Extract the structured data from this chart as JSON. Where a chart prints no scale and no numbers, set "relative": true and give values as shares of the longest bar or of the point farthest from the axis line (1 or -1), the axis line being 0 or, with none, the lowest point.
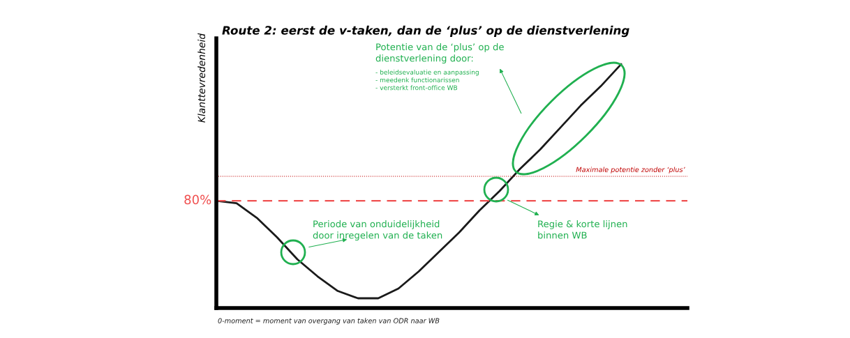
{
  "chart_data": {
    "type": "line",
    "title": "Route 2: eerst de v-taken, dan de ‘plus’ op de dienstverlening",
    "ylabel": "Klanttevredenheid",
    "relative": true,
    "categories": [
      null,
      null,
      null,
      null,
      null,
      null,
      null,
      null,
      null,
      null,
      null,
      null,
      null,
      null,
      null,
      null,
      null,
      null,
      null,
      null,
      null
    ],
    "series": [
      {
        "color": "#1a1a1a",
        "values": [
          0.44,
          0.43,
          0.37,
          0.29,
          0.2,
          0.13,
          0.07,
          0.04,
          0.04,
          0.08,
          0.15,
          0.23,
          0.31,
          0.4,
          0.48,
          0.57,
          0.65,
          0.74,
          0.83,
          0.91,
          1.0
        ]
      }
    ],
    "ref_lines": [
      {
        "axis": "y",
        "value": 0.44,
        "color": "#f05050",
        "line_style": "dashed"
      },
      {
        "axis": "y",
        "value": 0.54,
        "label": "Maximale potentie zonder ‘plus’",
        "color": "#c00000",
        "line_style": "dotted"
      }
    ],
    "annotations": [
      "Potentie van de ‘plus’ op de\ndienstverlening door:",
      "- beleidsevaluatie en aanpassing\n- meedenk functionarissen\n- versterkt front-office WB",
      "Periode van onduidelijkheid\ndoor inregelen van de taken",
      "Regie & korte lijnen\nbinnen WB",
      "0-moment = moment van overgang van taken van ODR naar WB",
      "80%"
    ],
    "grid": false,
    "legend": false,
    "marker": "none",
    "line_style": "solid"
  }
}
